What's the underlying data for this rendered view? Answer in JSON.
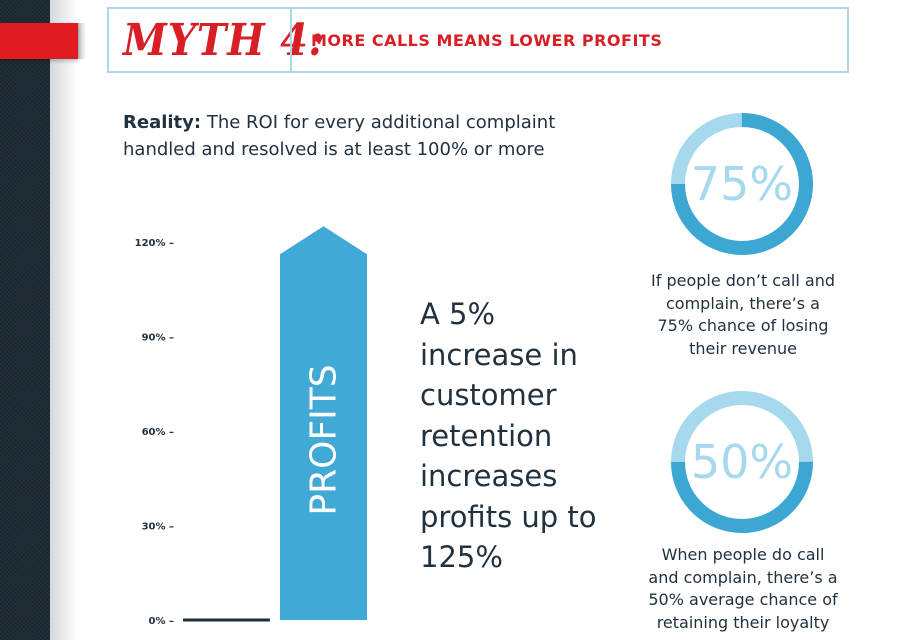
{
  "header": {
    "myth_label": "MYTH 4:",
    "subtitle": "MORE CALLS MEANS LOWER PROFITS"
  },
  "reality": {
    "label": "Reality:",
    "text": "The ROI for every additional complaint handled and resolved is at least 100% or more"
  },
  "chart_data": {
    "type": "bar",
    "categories": [
      "",
      "PROFITS"
    ],
    "values": [
      0,
      125
    ],
    "ylim": [
      0,
      120
    ],
    "yticks": [
      "0%",
      "30%",
      "60%",
      "90%",
      "120%"
    ],
    "bar_label": "PROFITS",
    "colors": {
      "arrow": "#41a9d6",
      "baseline": "#1e2f3d"
    }
  },
  "callout": "A 5% increase in customer retention increases profits up to 125%",
  "stats": [
    {
      "value": "75%",
      "fraction": 0.75,
      "caption": "If people don’t call and complain, there’s a 75% chance of losing their revenue"
    },
    {
      "value": "50%",
      "fraction": 0.5,
      "caption": "When people do call and complain, there’s a 50% average chance of retaining their loyalty"
    }
  ],
  "colors": {
    "accent_red": "#d81f26",
    "ring_dark": "#3da7d4",
    "ring_light": "#a6d8ee",
    "border": "#a9d8ea",
    "text": "#22313f"
  }
}
